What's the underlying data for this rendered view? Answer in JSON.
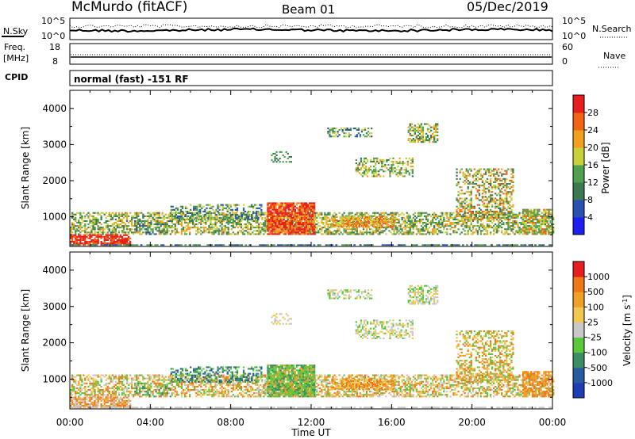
{
  "header": {
    "station": "McMurdo (fitACF)",
    "beam": "Beam 01",
    "date": "05/Dec/2019"
  },
  "top_panels": {
    "nsky_label": "N.Sky",
    "nsearch_label": "N.Search",
    "noise_ticks": [
      "10^5",
      "10^0"
    ],
    "freq_label_1": "Freq.",
    "freq_label_2": "[MHz]",
    "freq_ticks": [
      "18",
      "8"
    ],
    "nave_label": "Nave",
    "nave_ticks": [
      "60",
      "0"
    ],
    "cpid_label": "CPID",
    "cpid_text": "normal (fast) -151 RF"
  },
  "chart_data": [
    {
      "type": "heatmap",
      "title": "Power",
      "ylabel": "Slant Range [km]",
      "xlabel": "Time UT",
      "x_ticks": [
        "00:00",
        "04:00",
        "08:00",
        "12:00",
        "16:00",
        "20:00",
        "00:00"
      ],
      "y_ticks": [
        1000,
        2000,
        3000,
        4000
      ],
      "ylim": [
        180,
        4500
      ],
      "colorbar_label": "Power [dB]",
      "colorbar_ticks": [
        4,
        8,
        12,
        16,
        20,
        24,
        28
      ],
      "colorbar_colors": [
        "#1e1ef0",
        "#2a50b4",
        "#3c7850",
        "#50a050",
        "#c8d03c",
        "#f0a01e",
        "#f06414",
        "#e61e1e"
      ]
    },
    {
      "type": "heatmap",
      "title": "Velocity",
      "ylabel": "Slant Range [km]",
      "xlabel": "Time UT",
      "x_ticks": [
        "00:00",
        "04:00",
        "08:00",
        "12:00",
        "16:00",
        "20:00",
        "00:00"
      ],
      "y_ticks": [
        1000,
        2000,
        3000,
        4000
      ],
      "ylim": [
        180,
        4500
      ],
      "colorbar_label": "Velocity [m s-1]",
      "colorbar_ticks": [
        1000,
        500,
        100,
        25,
        -25,
        -100,
        -500,
        -1000
      ],
      "colorbar_colors": [
        "#1e3cb4",
        "#285aa0",
        "#3c8c64",
        "#5ac83c",
        "#c8c8c8",
        "#f0c850",
        "#f0a028",
        "#f07814",
        "#e61e1e"
      ]
    }
  ],
  "x_axis_title": "Time UT"
}
